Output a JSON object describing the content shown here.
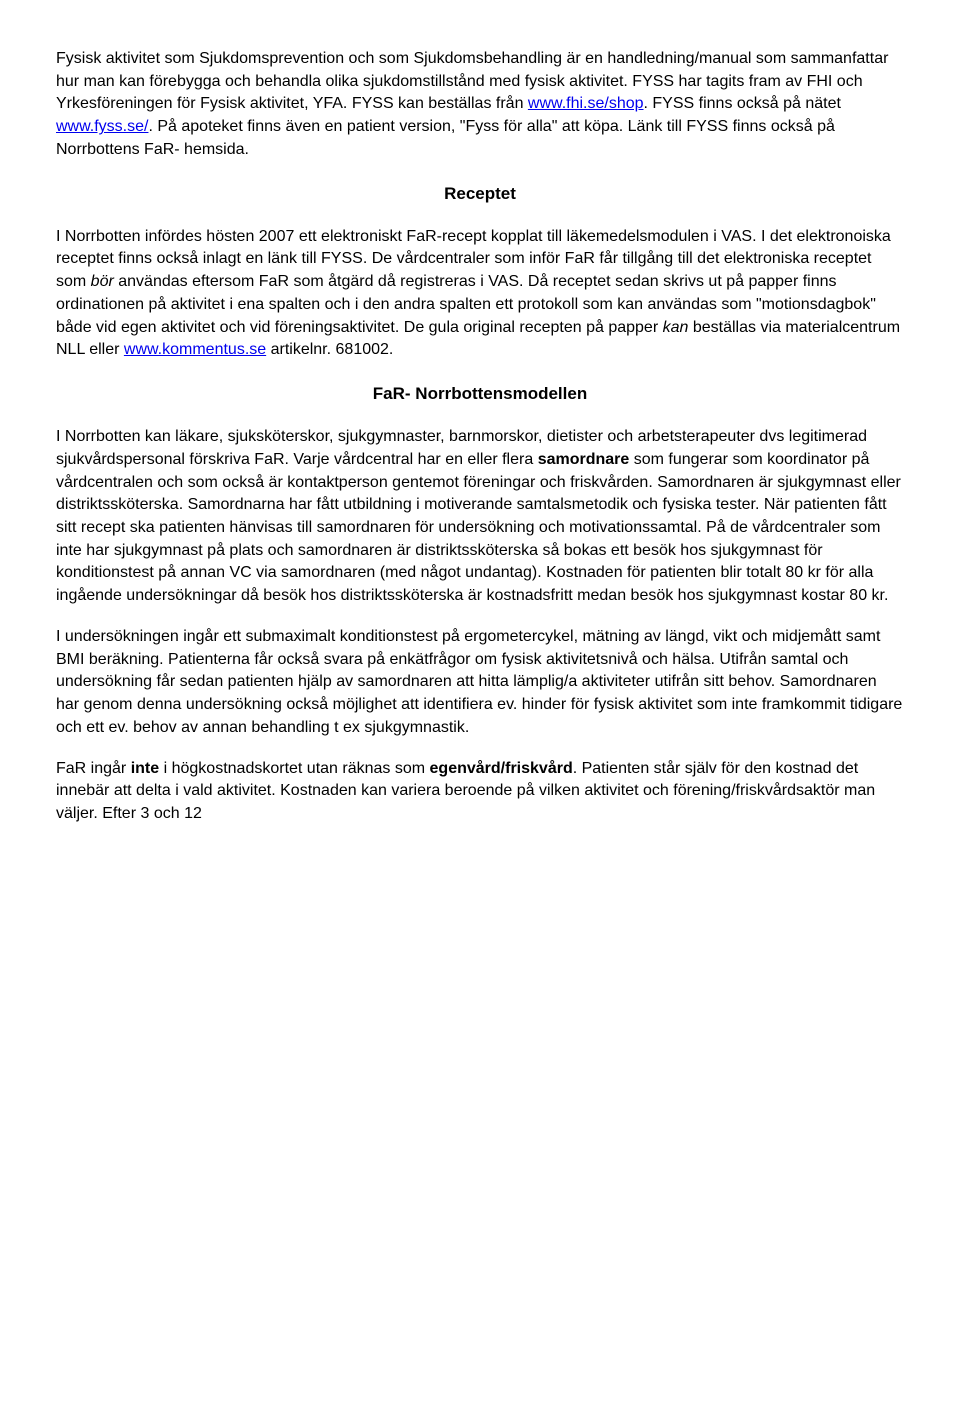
{
  "p1_a": "Fysisk aktivitet som Sjukdomsprevention och som Sjukdomsbehandling är en handledning/manual som sammanfattar hur man kan förebygga och behandla olika sjukdomstillstånd med fysisk aktivitet. FYSS har tagits fram av FHI och Yrkesföreningen för Fysisk aktivitet, YFA. FYSS kan beställas från ",
  "p1_link1": "www.fhi.se/shop",
  "p1_b": ". FYSS finns också på nätet ",
  "p1_link2": "www.fyss.se/",
  "p1_c": ". På apoteket finns även en patient version, \"Fyss för alla\" att köpa. Länk till FYSS finns också på Norrbottens FaR- hemsida.",
  "h_receptet": "Receptet",
  "p2_a": "I Norrbotten infördes hösten 2007 ett elektroniskt FaR-recept kopplat till läkemedelsmodulen i VAS. I det elektronoiska receptet finns också inlagt en länk till FYSS. De vårdcentraler som inför FaR får tillgång till det elektroniska receptet som ",
  "p2_i1": "bör",
  "p2_b": " användas eftersom FaR som åtgärd då registreras i VAS. Då receptet sedan skrivs ut på papper finns ordinationen på aktivitet i ena spalten och i den andra spalten ett protokoll som kan användas som \"motionsdagbok\" både vid egen aktivitet och vid föreningsaktivitet. De gula original recepten på papper ",
  "p2_i2": "kan",
  "p2_c": " beställas via materialcentrum NLL eller ",
  "p2_link": "www.kommentus.se",
  "p2_d": " artikelnr. 681002.",
  "h_modellen": "FaR- Norrbottensmodellen",
  "p3_a": "I Norrbotten kan läkare, sjuksköterskor, sjukgymnaster, barnmorskor, dietister och arbetsterapeuter dvs legitimerad sjukvårdspersonal förskriva FaR. Varje vårdcentral har en eller flera ",
  "p3_b1": "samordnare",
  "p3_b": " som fungerar som koordinator på vårdcentralen och som också är kontaktperson gentemot föreningar och friskvården. Samordnaren är sjukgymnast eller distriktssköterska. Samordnarna har fått utbildning i motiverande samtalsmetodik och fysiska tester. När patienten fått sitt recept ska patienten hänvisas till samordnaren för undersökning och motivationssamtal. På de vårdcentraler som inte har sjukgymnast på plats och samordnaren är distriktssköterska så bokas ett besök hos sjukgymnast för konditionstest på annan VC via samordnaren (med något undantag). Kostnaden för patienten blir totalt 80 kr för alla ingående undersökningar då besök hos distriktssköterska är kostnadsfritt medan besök hos sjukgymnast kostar 80 kr.",
  "p4": "I undersökningen ingår ett submaximalt konditionstest på ergometercykel, mätning av längd, vikt och midjemått samt BMI beräkning. Patienterna får också svara på enkätfrågor om fysisk aktivitetsnivå och hälsa. Utifrån samtal och undersökning får sedan patienten hjälp av samordnaren att hitta lämplig/a aktiviteter utifrån sitt behov. Samordnaren har genom denna undersökning också möjlighet att identifiera ev. hinder för fysisk aktivitet som inte framkommit tidigare och ett ev. behov av annan behandling t ex sjukgymnastik.",
  "p5_a": "FaR ingår ",
  "p5_b1": "inte",
  "p5_b": " i högkostnadskortet utan räknas som ",
  "p5_b2": "egenvård/friskvård",
  "p5_c": ". Patienten står själv för den kostnad det innebär att delta i vald aktivitet. Kostnaden kan variera beroende på vilken aktivitet och förening/friskvårdsaktör man väljer. Efter 3 och 12"
}
